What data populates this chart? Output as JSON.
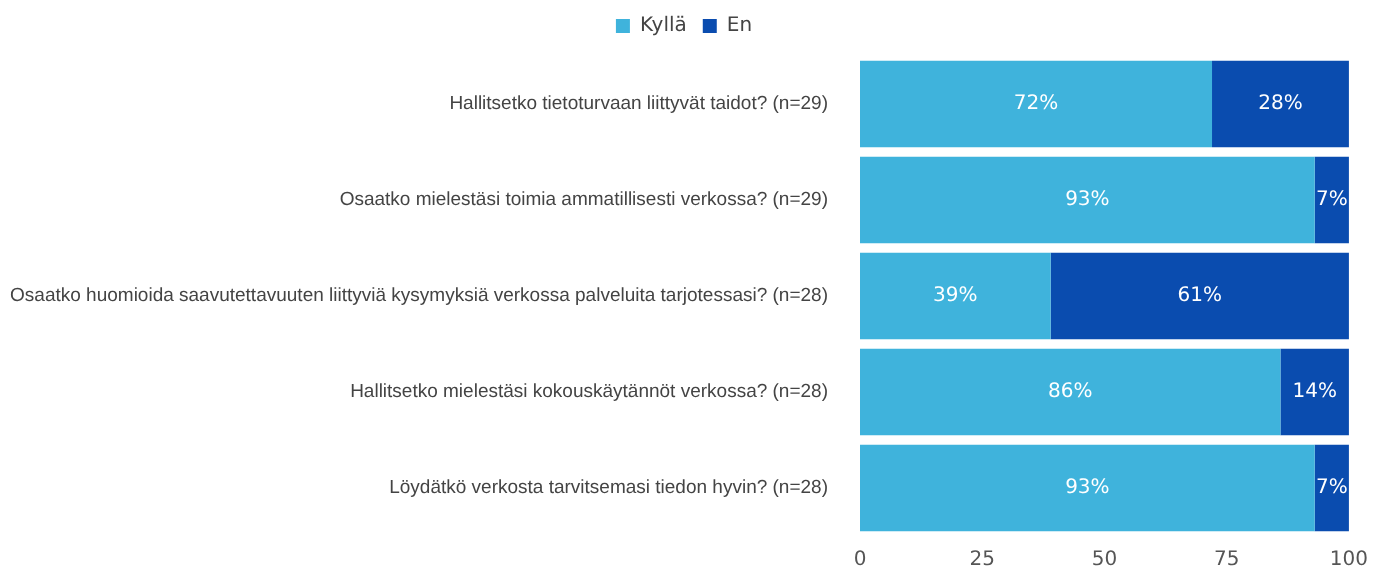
{
  "chart_data": {
    "type": "bar",
    "orientation": "horizontal",
    "stacked": true,
    "legend": "top",
    "categories": [
      "Hallitsetko tietoturvaan liittyvät taidot? (n=29)",
      "Osaatko mielestäsi toimia ammatillisesti verkossa? (n=29)",
      "Osaatko huomioida saavutettavuuten liittyviä kysymyksiä verkossa palveluita tarjotessasi? (n=28)",
      "Hallitsetko mielestäsi kokouskäytännöt verkossa? (n=28)",
      "Löydätkö verkosta tarvitsemasi tiedon hyvin? (n=28)"
    ],
    "series": [
      {
        "name": "Kyllä",
        "color": "#3fb3dc",
        "values": [
          72,
          93,
          39,
          86,
          93
        ],
        "value_labels": [
          "72%",
          "93%",
          "39%",
          "86%",
          "93%"
        ]
      },
      {
        "name": "En",
        "color": "#0a4caf",
        "values": [
          28,
          7,
          61,
          14,
          7
        ],
        "value_labels": [
          "28%",
          "7%",
          "61%",
          "14%",
          "7%"
        ]
      }
    ],
    "xlim": [
      0,
      100
    ],
    "xticks": [
      0,
      25,
      50,
      75,
      100
    ]
  }
}
